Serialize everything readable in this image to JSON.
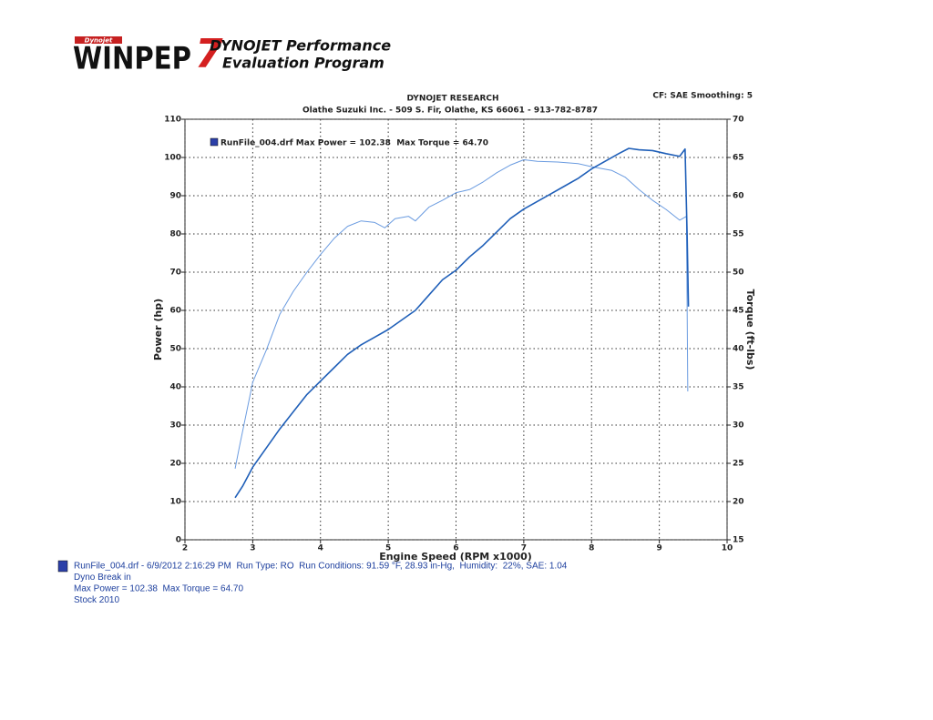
{
  "header": {
    "logo_small": "Dynojet",
    "logo": "WINPEP",
    "logo_version": "7",
    "program_line1": "DYNOJET Performance",
    "program_line2": "Evaluation Program",
    "company": "DYNOJET RESEARCH",
    "address": "Olathe Suzuki Inc. - 509 S. Fir,  Olathe, KS  66061 - 913-782-8787",
    "settings": "CF: SAE  Smoothing: 5"
  },
  "chart_data": {
    "type": "line",
    "x_label": "Engine Speed (RPM x1000)",
    "y_label": "Power (hp)",
    "y2_label": "Torque (ft-lbs)",
    "xlim": [
      2,
      10
    ],
    "xticks": [
      2,
      3,
      4,
      5,
      6,
      7,
      8,
      9,
      10
    ],
    "ylim": [
      0,
      110
    ],
    "yticks": [
      0,
      10,
      20,
      30,
      40,
      50,
      60,
      70,
      80,
      90,
      100,
      110
    ],
    "y2lim": [
      15,
      70
    ],
    "y2ticks": [
      15,
      20,
      25,
      30,
      35,
      40,
      45,
      50,
      55,
      60,
      65,
      70
    ],
    "grid": true,
    "legend": {
      "label": "RunFile_004.drf Max Power = 102.38  Max Torque = 64.70",
      "color": "#2b3fa8"
    },
    "series": [
      {
        "color": "#1f5fb8",
        "width": 1.6,
        "x": [
          2.74,
          2.85,
          3.0,
          3.2,
          3.4,
          3.6,
          3.8,
          4.0,
          4.2,
          4.4,
          4.6,
          4.8,
          5.0,
          5.2,
          5.4,
          5.6,
          5.8,
          6.0,
          6.2,
          6.4,
          6.6,
          6.8,
          7.0,
          7.2,
          7.4,
          7.6,
          7.8,
          8.0,
          8.2,
          8.4,
          8.55,
          8.7,
          8.9,
          9.1,
          9.3,
          9.38,
          9.41,
          9.43
        ],
        "values": [
          11,
          14,
          19,
          24,
          29,
          33.5,
          38,
          41.5,
          45,
          48.5,
          51,
          53,
          55,
          57.5,
          60,
          64,
          68,
          70.5,
          74,
          77,
          80.5,
          84,
          86.5,
          88.5,
          90.5,
          92.5,
          94.5,
          97,
          99,
          101,
          102.38,
          102,
          101.8,
          101,
          100.3,
          102.2,
          80,
          61
        ]
      },
      {
        "color": "#6a9be0",
        "width": 1,
        "axis": "y2",
        "x": [
          2.74,
          2.8,
          3.0,
          3.2,
          3.4,
          3.6,
          3.8,
          4.0,
          4.2,
          4.4,
          4.6,
          4.8,
          4.95,
          5.1,
          5.3,
          5.4,
          5.6,
          5.8,
          6.0,
          6.2,
          6.4,
          6.6,
          6.8,
          7.0,
          7.2,
          7.5,
          7.8,
          8.0,
          8.3,
          8.5,
          8.7,
          8.9,
          9.1,
          9.3,
          9.4,
          9.42
        ],
        "values": [
          24.3,
          27,
          35.6,
          39.8,
          44.5,
          47.5,
          50,
          52.3,
          54.4,
          56,
          56.7,
          56.5,
          55.8,
          57,
          57.3,
          56.7,
          58.5,
          59.4,
          60.4,
          60.8,
          61.8,
          63,
          64,
          64.7,
          64.5,
          64.4,
          64.2,
          63.8,
          63.3,
          62.4,
          60.8,
          59.4,
          58.2,
          56.8,
          57.3,
          34.4
        ]
      }
    ]
  },
  "footer": {
    "color": "#2b3fa8",
    "lines": [
      "RunFile_004.drf - 6/9/2012 2:16:29 PM  Run Type: RO  Run Conditions: 91.59 °F, 28.93 in-Hg,  Humidity:  22%, SAE: 1.04",
      "Dyno Break in",
      "Max Power = 102.38  Max Torque = 64.70",
      "Stock 2010"
    ]
  }
}
